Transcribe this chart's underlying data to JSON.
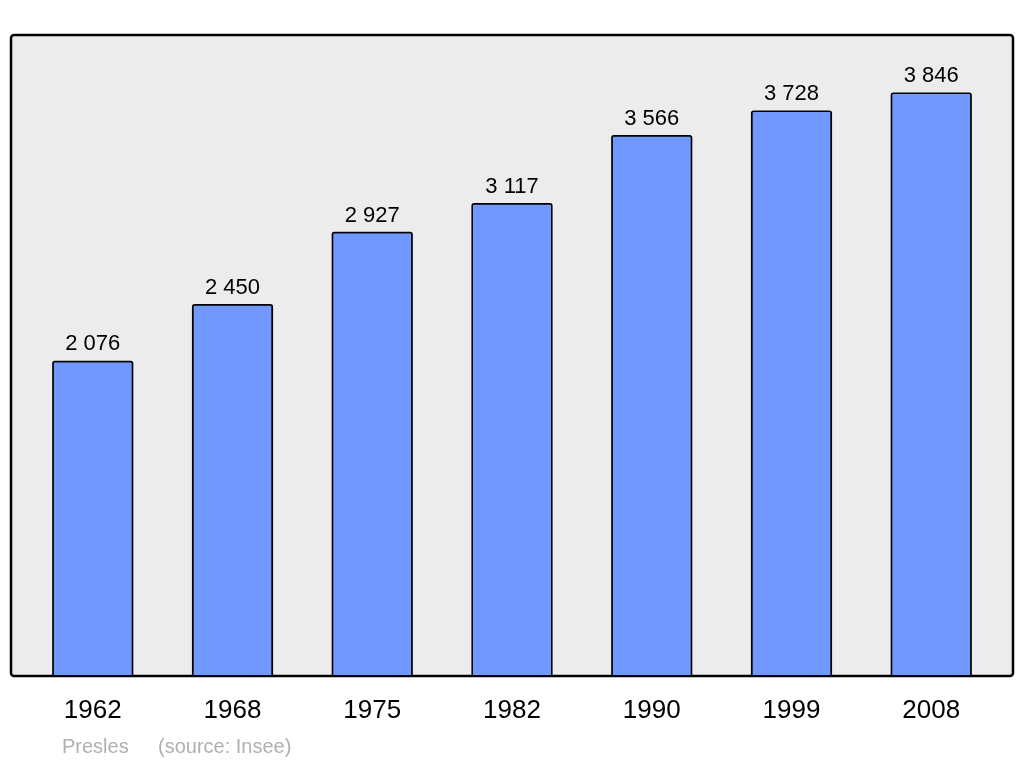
{
  "chart_data": {
    "type": "bar",
    "categories": [
      "1962",
      "1968",
      "1975",
      "1982",
      "1990",
      "1999",
      "2008"
    ],
    "values": [
      2076,
      2450,
      2927,
      3117,
      3566,
      3728,
      3846
    ],
    "value_labels": [
      "2 076",
      "2 450",
      "2 927",
      "3 117",
      "3 566",
      "3 728",
      "3 846"
    ],
    "color": "#7098ff",
    "annotations": [
      "Presles",
      "(source: Insee)"
    ],
    "grid": false
  }
}
